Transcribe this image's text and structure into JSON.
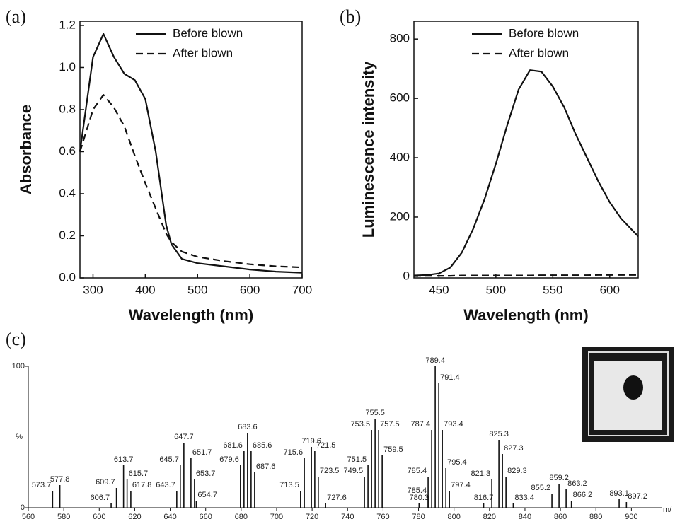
{
  "chart_data": [
    {
      "type": "line",
      "panel_label": "(a)",
      "xlabel": "Wavelength (nm)",
      "ylabel": "Absorbance",
      "xlim": [
        275,
        700
      ],
      "ylim": [
        0,
        1.22
      ],
      "xticks": [
        300,
        400,
        500,
        600,
        700
      ],
      "yticks": [
        {
          "value": 0,
          "label": "0.0"
        },
        0.2,
        0.4,
        0.6,
        0.8,
        {
          "value": 1,
          "label": "1.0"
        },
        1.2
      ],
      "legend": "top-right",
      "x": [
        275,
        300,
        320,
        340,
        360,
        380,
        400,
        420,
        440,
        450,
        470,
        500,
        550,
        600,
        650,
        700
      ],
      "series": [
        {
          "name": "Before blown",
          "color": "#111111",
          "dash": false,
          "values": [
            0.6,
            1.05,
            1.16,
            1.05,
            0.97,
            0.94,
            0.85,
            0.6,
            0.25,
            0.16,
            0.09,
            0.07,
            0.055,
            0.04,
            0.03,
            0.025
          ]
        },
        {
          "name": "After blown",
          "color": "#111111",
          "dash": true,
          "values": [
            0.6,
            0.8,
            0.87,
            0.81,
            0.72,
            0.58,
            0.45,
            0.33,
            0.21,
            0.17,
            0.125,
            0.1,
            0.08,
            0.065,
            0.055,
            0.05
          ]
        }
      ]
    },
    {
      "type": "line",
      "panel_label": "(b)",
      "xlabel": "Wavelength (nm)",
      "ylabel": "Luminescence intensity",
      "xlim": [
        428,
        625
      ],
      "ylim": [
        -5,
        860
      ],
      "xticks": [
        450,
        500,
        550,
        600
      ],
      "yticks": [
        0,
        200,
        400,
        600,
        800
      ],
      "legend": "top-right",
      "x": [
        428,
        440,
        450,
        460,
        470,
        480,
        490,
        500,
        510,
        520,
        530,
        540,
        550,
        560,
        570,
        580,
        590,
        600,
        610,
        625
      ],
      "series": [
        {
          "name": "Before blown",
          "color": "#111111",
          "dash": false,
          "values": [
            3,
            5,
            10,
            30,
            80,
            160,
            260,
            380,
            510,
            630,
            695,
            690,
            640,
            570,
            480,
            400,
            320,
            250,
            195,
            135
          ]
        },
        {
          "name": "After blown",
          "color": "#111111",
          "dash": true,
          "values": [
            2,
            2,
            2,
            2,
            3,
            3,
            3,
            3,
            3,
            3,
            3,
            4,
            4,
            4,
            4,
            4,
            5,
            5,
            5,
            5
          ]
        }
      ]
    },
    {
      "type": "stem",
      "panel_label": "(c)",
      "xlabel": "m/",
      "ylabel": "%",
      "xlim": [
        560,
        917
      ],
      "ylim": [
        0,
        100
      ],
      "xticks": [
        560,
        580,
        600,
        620,
        640,
        660,
        680,
        700,
        720,
        740,
        760,
        780,
        800,
        820,
        840,
        860,
        880,
        900
      ],
      "yticks": [
        0,
        100
      ],
      "color": "#111111",
      "x": [
        573.7,
        577.8,
        606.7,
        609.7,
        613.7,
        615.7,
        617.8,
        643.7,
        645.7,
        647.7,
        651.7,
        653.7,
        654.7,
        679.6,
        681.6,
        683.6,
        685.6,
        687.6,
        713.5,
        715.6,
        719.6,
        721.5,
        723.5,
        727.6,
        749.5,
        751.5,
        753.5,
        755.5,
        757.5,
        759.5,
        780.3,
        785.4,
        785.4,
        787.4,
        789.4,
        791.4,
        793.4,
        795.4,
        797.4,
        816.7,
        821.3,
        825.3,
        827.3,
        829.3,
        833.4,
        855.2,
        859.2,
        863.2,
        866.2,
        893.1,
        897.2
      ],
      "values": [
        12,
        16,
        3,
        14,
        30,
        20,
        12,
        12,
        30,
        46,
        35,
        20,
        5,
        30,
        40,
        53,
        40,
        25,
        12,
        35,
        43,
        40,
        22,
        3,
        22,
        30,
        55,
        63,
        55,
        37,
        3,
        8,
        22,
        55,
        100,
        88,
        55,
        28,
        12,
        3,
        20,
        48,
        38,
        22,
        3,
        10,
        17,
        13,
        5,
        6,
        4
      ]
    }
  ]
}
